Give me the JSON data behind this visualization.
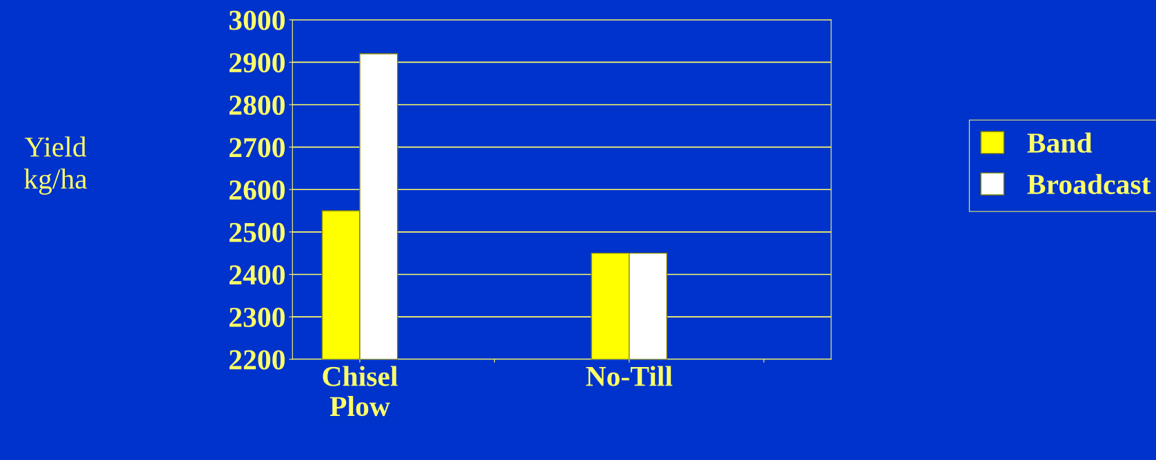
{
  "chart_data": {
    "type": "bar",
    "ylabel": "Yield\nkg/ha",
    "categories": [
      "Chisel\nPlow",
      null,
      "No-Till",
      null
    ],
    "series": [
      {
        "name": "Band",
        "color": "#ffff00",
        "values": [
          2550,
          null,
          2450,
          null
        ]
      },
      {
        "name": "Broadcast",
        "color": "#ffffff",
        "values": [
          2920,
          null,
          2450,
          null
        ]
      }
    ],
    "ylim": [
      2200,
      3000
    ],
    "yticks": [
      2200,
      2300,
      2400,
      2500,
      2600,
      2700,
      2800,
      2900,
      3000
    ],
    "grid": "y",
    "legend": "right"
  }
}
